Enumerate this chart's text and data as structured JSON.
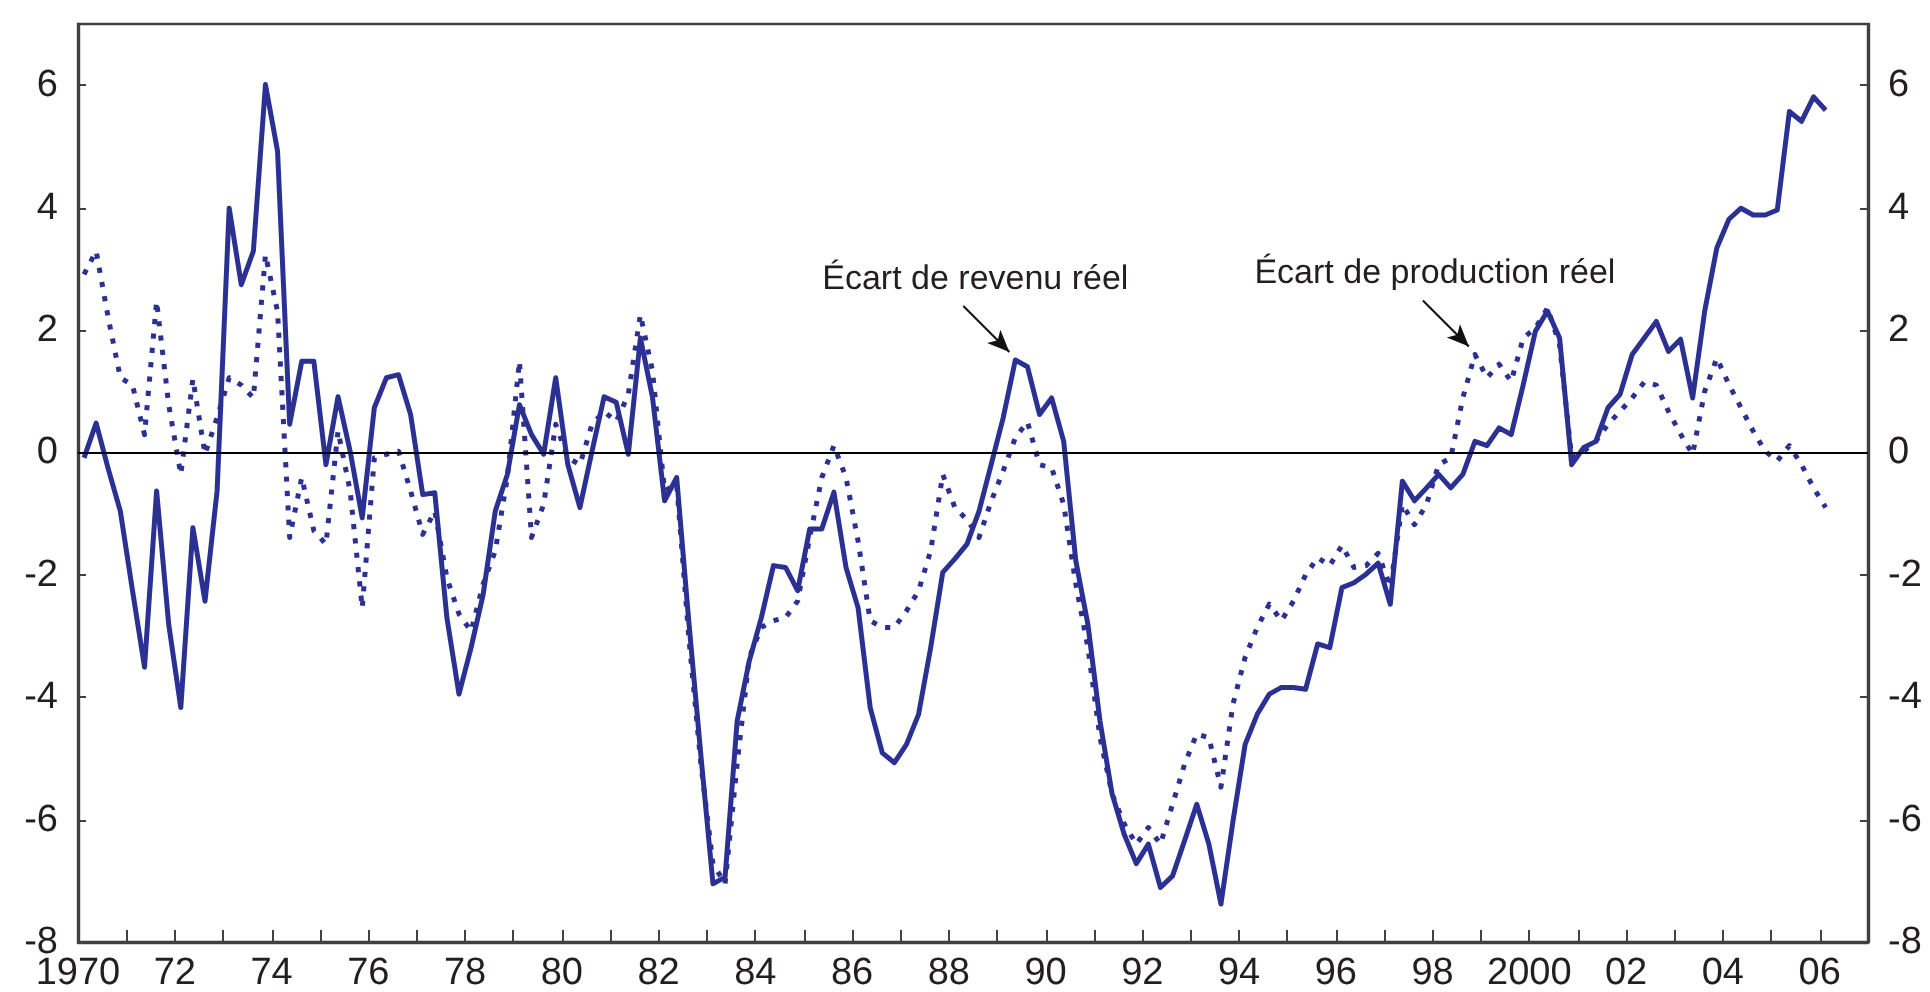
{
  "chart_data": {
    "type": "line",
    "x": [
      1970.125,
      1970.375,
      1970.625,
      1970.875,
      1971.125,
      1971.375,
      1971.625,
      1971.875,
      1972.125,
      1972.375,
      1972.625,
      1972.875,
      1973.125,
      1973.375,
      1973.625,
      1973.875,
      1974.125,
      1974.375,
      1974.625,
      1974.875,
      1975.125,
      1975.375,
      1975.625,
      1975.875,
      1976.125,
      1976.375,
      1976.625,
      1976.875,
      1977.125,
      1977.375,
      1977.625,
      1977.875,
      1978.125,
      1978.375,
      1978.625,
      1978.875,
      1979.125,
      1979.375,
      1979.625,
      1979.875,
      1980.125,
      1980.375,
      1980.625,
      1980.875,
      1981.125,
      1981.375,
      1981.625,
      1981.875,
      1982.125,
      1982.375,
      1982.625,
      1982.875,
      1983.125,
      1983.375,
      1983.625,
      1983.875,
      1984.125,
      1984.375,
      1984.625,
      1984.875,
      1985.125,
      1985.375,
      1985.625,
      1985.875,
      1986.125,
      1986.375,
      1986.625,
      1986.875,
      1987.125,
      1987.375,
      1987.625,
      1987.875,
      1988.125,
      1988.375,
      1988.625,
      1988.875,
      1989.125,
      1989.375,
      1989.625,
      1989.875,
      1990.125,
      1990.375,
      1990.625,
      1990.875,
      1991.125,
      1991.375,
      1991.625,
      1991.875,
      1992.125,
      1992.375,
      1992.625,
      1992.875,
      1993.125,
      1993.375,
      1993.625,
      1993.875,
      1994.125,
      1994.375,
      1994.625,
      1994.875,
      1995.125,
      1995.375,
      1995.625,
      1995.875,
      1996.125,
      1996.375,
      1996.625,
      1996.875,
      1997.125,
      1997.375,
      1997.625,
      1997.875,
      1998.125,
      1998.375,
      1998.625,
      1998.875,
      1999.125,
      1999.375,
      1999.625,
      1999.875,
      2000.125,
      2000.375,
      2000.625,
      2000.875,
      2001.125,
      2001.375,
      2001.625,
      2001.875,
      2002.125,
      2002.375,
      2002.625,
      2002.875,
      2003.125,
      2003.375,
      2003.625,
      2003.875,
      2004.125,
      2004.375,
      2004.625,
      2004.875,
      2005.125,
      2005.375,
      2005.625,
      2005.875,
      2006.125
    ],
    "series": [
      {
        "color": "#2b3192",
        "line_style": "solid",
        "values": [
          -0.09,
          0.48,
          -0.27,
          -0.96,
          -2.25,
          -3.51,
          -0.63,
          -2.81,
          -4.17,
          -1.23,
          -2.43,
          -0.63,
          3.99,
          2.74,
          3.29,
          6.01,
          4.92,
          0.46,
          1.49,
          1.49,
          -0.2,
          0.91,
          0.02,
          -1.07,
          0.73,
          1.22,
          1.27,
          0.62,
          -0.69,
          -0.66,
          -2.7,
          -3.95,
          -3.19,
          -2.32,
          -0.96,
          -0.36,
          0.78,
          0.29,
          -0.03,
          1.22,
          -0.2,
          -0.9,
          0.02,
          0.91,
          0.82,
          -0.03,
          1.87,
          0.9,
          -0.79,
          -0.41,
          -2.76,
          -4.95,
          -7.05,
          -6.94,
          -4.39,
          -3.41,
          -2.7,
          -1.85,
          -1.88,
          -2.26,
          -1.25,
          -1.25,
          -0.65,
          -1.88,
          -2.54,
          -4.17,
          -4.91,
          -5.07,
          -4.77,
          -4.28,
          -3.19,
          -1.96,
          -1.74,
          -1.5,
          -0.96,
          -0.2,
          0.57,
          1.51,
          1.4,
          0.62,
          0.89,
          0.18,
          -1.77,
          -2.81,
          -4.39,
          -5.58,
          -6.24,
          -6.72,
          -6.4,
          -7.11,
          -6.92,
          -6.34,
          -5.75,
          -6.4,
          -7.38,
          -6.02,
          -4.77,
          -4.28,
          -3.95,
          -3.84,
          -3.84,
          -3.87,
          -3.13,
          -3.19,
          -2.21,
          -2.13,
          -1.99,
          -1.81,
          -2.48,
          -0.47,
          -0.79,
          -0.58,
          -0.36,
          -0.58,
          -0.36,
          0.18,
          0.11,
          0.4,
          0.29,
          1.11,
          1.98,
          2.31,
          1.87,
          -0.2,
          0.08,
          0.18,
          0.73,
          0.95,
          1.6,
          1.87,
          2.14,
          1.65,
          1.85,
          0.89,
          2.31,
          3.34,
          3.81,
          3.99,
          3.88,
          3.88,
          3.96,
          5.57,
          5.41,
          5.81,
          5.59
        ]
      },
      {
        "color": "#2b3192",
        "line_style": "dotted",
        "values": [
          2.91,
          3.29,
          2.2,
          1.22,
          1.1,
          0.29,
          2.47,
          0.78,
          -0.36,
          1.2,
          -0.03,
          0.57,
          1.22,
          1.1,
          0.89,
          3.23,
          2.3,
          -1.39,
          -0.41,
          -1.28,
          -1.5,
          0.35,
          -0.63,
          -2.54,
          -0.09,
          -0.03,
          0.02,
          -0.63,
          -1.34,
          -0.96,
          -2.05,
          -2.64,
          -2.92,
          -2.15,
          -1.61,
          -0.41,
          1.49,
          -1.39,
          -0.85,
          0.46,
          -0.09,
          -0.2,
          0.46,
          0.67,
          0.5,
          0.95,
          2.25,
          1.33,
          -0.63,
          -0.52,
          -3.02,
          -5.09,
          -6.72,
          -7.05,
          -5.09,
          -3.35,
          -2.86,
          -2.75,
          -2.7,
          -2.43,
          -1.39,
          -0.41,
          0.11,
          -0.41,
          -1.45,
          -2.75,
          -2.86,
          -2.86,
          -2.59,
          -2.26,
          -1.61,
          -0.36,
          -0.9,
          -1.1,
          -1.39,
          -0.8,
          -0.3,
          0.24,
          0.5,
          -0.2,
          -0.25,
          -0.85,
          -2.15,
          -3.19,
          -4.66,
          -5.58,
          -6.07,
          -6.4,
          -6.13,
          -6.4,
          -5.75,
          -5.09,
          -4.6,
          -4.66,
          -5.47,
          -4.11,
          -3.35,
          -2.86,
          -2.48,
          -2.75,
          -2.43,
          -2.0,
          -1.72,
          -1.85,
          -1.52,
          -1.88,
          -1.85,
          -1.65,
          -2.2,
          -0.85,
          -1.18,
          -0.85,
          -0.2,
          -0.09,
          0.89,
          1.6,
          1.22,
          1.44,
          1.16,
          1.87,
          2.03,
          2.36,
          1.76,
          -0.09,
          0.02,
          0.18,
          0.46,
          0.67,
          0.89,
          1.15,
          1.1,
          0.67,
          0.3,
          -0.03,
          1.0,
          1.54,
          1.11,
          0.73,
          0.35,
          0.02,
          -0.14,
          0.11,
          -0.2,
          -0.58,
          -0.9
        ]
      }
    ],
    "xlim": [
      1970,
      2007
    ],
    "xticks": [
      1970,
      {
        "value": 1971,
        "label": null
      },
      {
        "value": 1972,
        "label": "72"
      },
      {
        "value": 1973,
        "label": null
      },
      {
        "value": 1974,
        "label": "74"
      },
      {
        "value": 1975,
        "label": null
      },
      {
        "value": 1976,
        "label": "76"
      },
      {
        "value": 1977,
        "label": null
      },
      {
        "value": 1978,
        "label": "78"
      },
      {
        "value": 1979,
        "label": null
      },
      {
        "value": 1980,
        "label": "80"
      },
      {
        "value": 1981,
        "label": null
      },
      {
        "value": 1982,
        "label": "82"
      },
      {
        "value": 1983,
        "label": null
      },
      {
        "value": 1984,
        "label": "84"
      },
      {
        "value": 1985,
        "label": null
      },
      {
        "value": 1986,
        "label": "86"
      },
      {
        "value": 1987,
        "label": null
      },
      {
        "value": 1988,
        "label": "88"
      },
      {
        "value": 1989,
        "label": null
      },
      {
        "value": 1990,
        "label": "90"
      },
      {
        "value": 1991,
        "label": null
      },
      {
        "value": 1992,
        "label": "92"
      },
      {
        "value": 1993,
        "label": null
      },
      {
        "value": 1994,
        "label": "94"
      },
      {
        "value": 1995,
        "label": null
      },
      {
        "value": 1996,
        "label": "96"
      },
      {
        "value": 1997,
        "label": null
      },
      {
        "value": 1998,
        "label": "98"
      },
      {
        "value": 1999,
        "label": null
      },
      2000,
      {
        "value": 2001,
        "label": null
      },
      {
        "value": 2002,
        "label": "02"
      },
      {
        "value": 2003,
        "label": null
      },
      {
        "value": 2004,
        "label": "04"
      },
      {
        "value": 2005,
        "label": null
      },
      {
        "value": 2006,
        "label": "06"
      }
    ],
    "ylim": [
      -8,
      7
    ],
    "yticks": [
      -8,
      -6,
      -4,
      -2,
      0,
      2,
      4,
      6
    ],
    "y2lim": [
      -8,
      7
    ],
    "y2ticks": [
      -8,
      -6,
      -4,
      -2,
      0,
      2,
      4,
      6
    ],
    "grid": false,
    "ref_lines": [
      {
        "axis": "y",
        "value": 0,
        "color": "#000000"
      }
    ],
    "annotations": [
      {
        "text": "Écart de revenu réel",
        "x": 1989.375,
        "y": 1.51
      },
      {
        "text": "Écart de production réel",
        "x": 1998.875,
        "y": 1.6
      }
    ]
  }
}
